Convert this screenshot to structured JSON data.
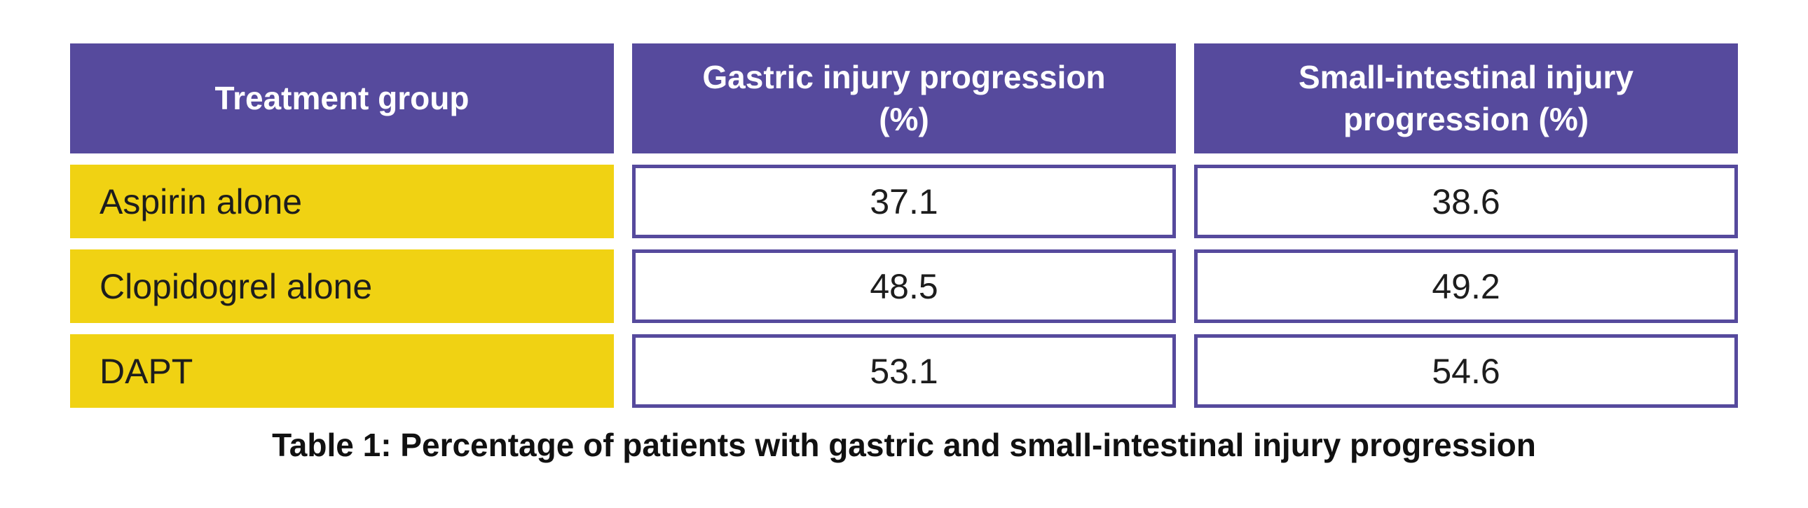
{
  "chart_data": {
    "type": "table",
    "title": "Table 1: Percentage of patients with gastric and small-intestinal injury progression",
    "columns": [
      "Treatment group",
      "Gastric injury progression (%)",
      "Small-intestinal injury progression (%)"
    ],
    "rows": [
      {
        "label": "Aspirin alone",
        "values": [
          "37.1",
          "38.6"
        ]
      },
      {
        "label": "Clopidogrel alone",
        "values": [
          "48.5",
          "49.2"
        ]
      },
      {
        "label": "DAPT",
        "values": [
          "53.1",
          "54.6"
        ]
      }
    ],
    "layout_hints": {
      "caption_position": "bottom-center",
      "header_style": "solid-fill",
      "value_cells": "bordered-white"
    }
  },
  "colors": {
    "header_bg": "#564a9d",
    "header_text": "#ffffff",
    "row_label_bg": "#f0d213",
    "value_cell_border": "#564a9d",
    "body_text": "#1d1d1d",
    "background": "#ffffff"
  }
}
